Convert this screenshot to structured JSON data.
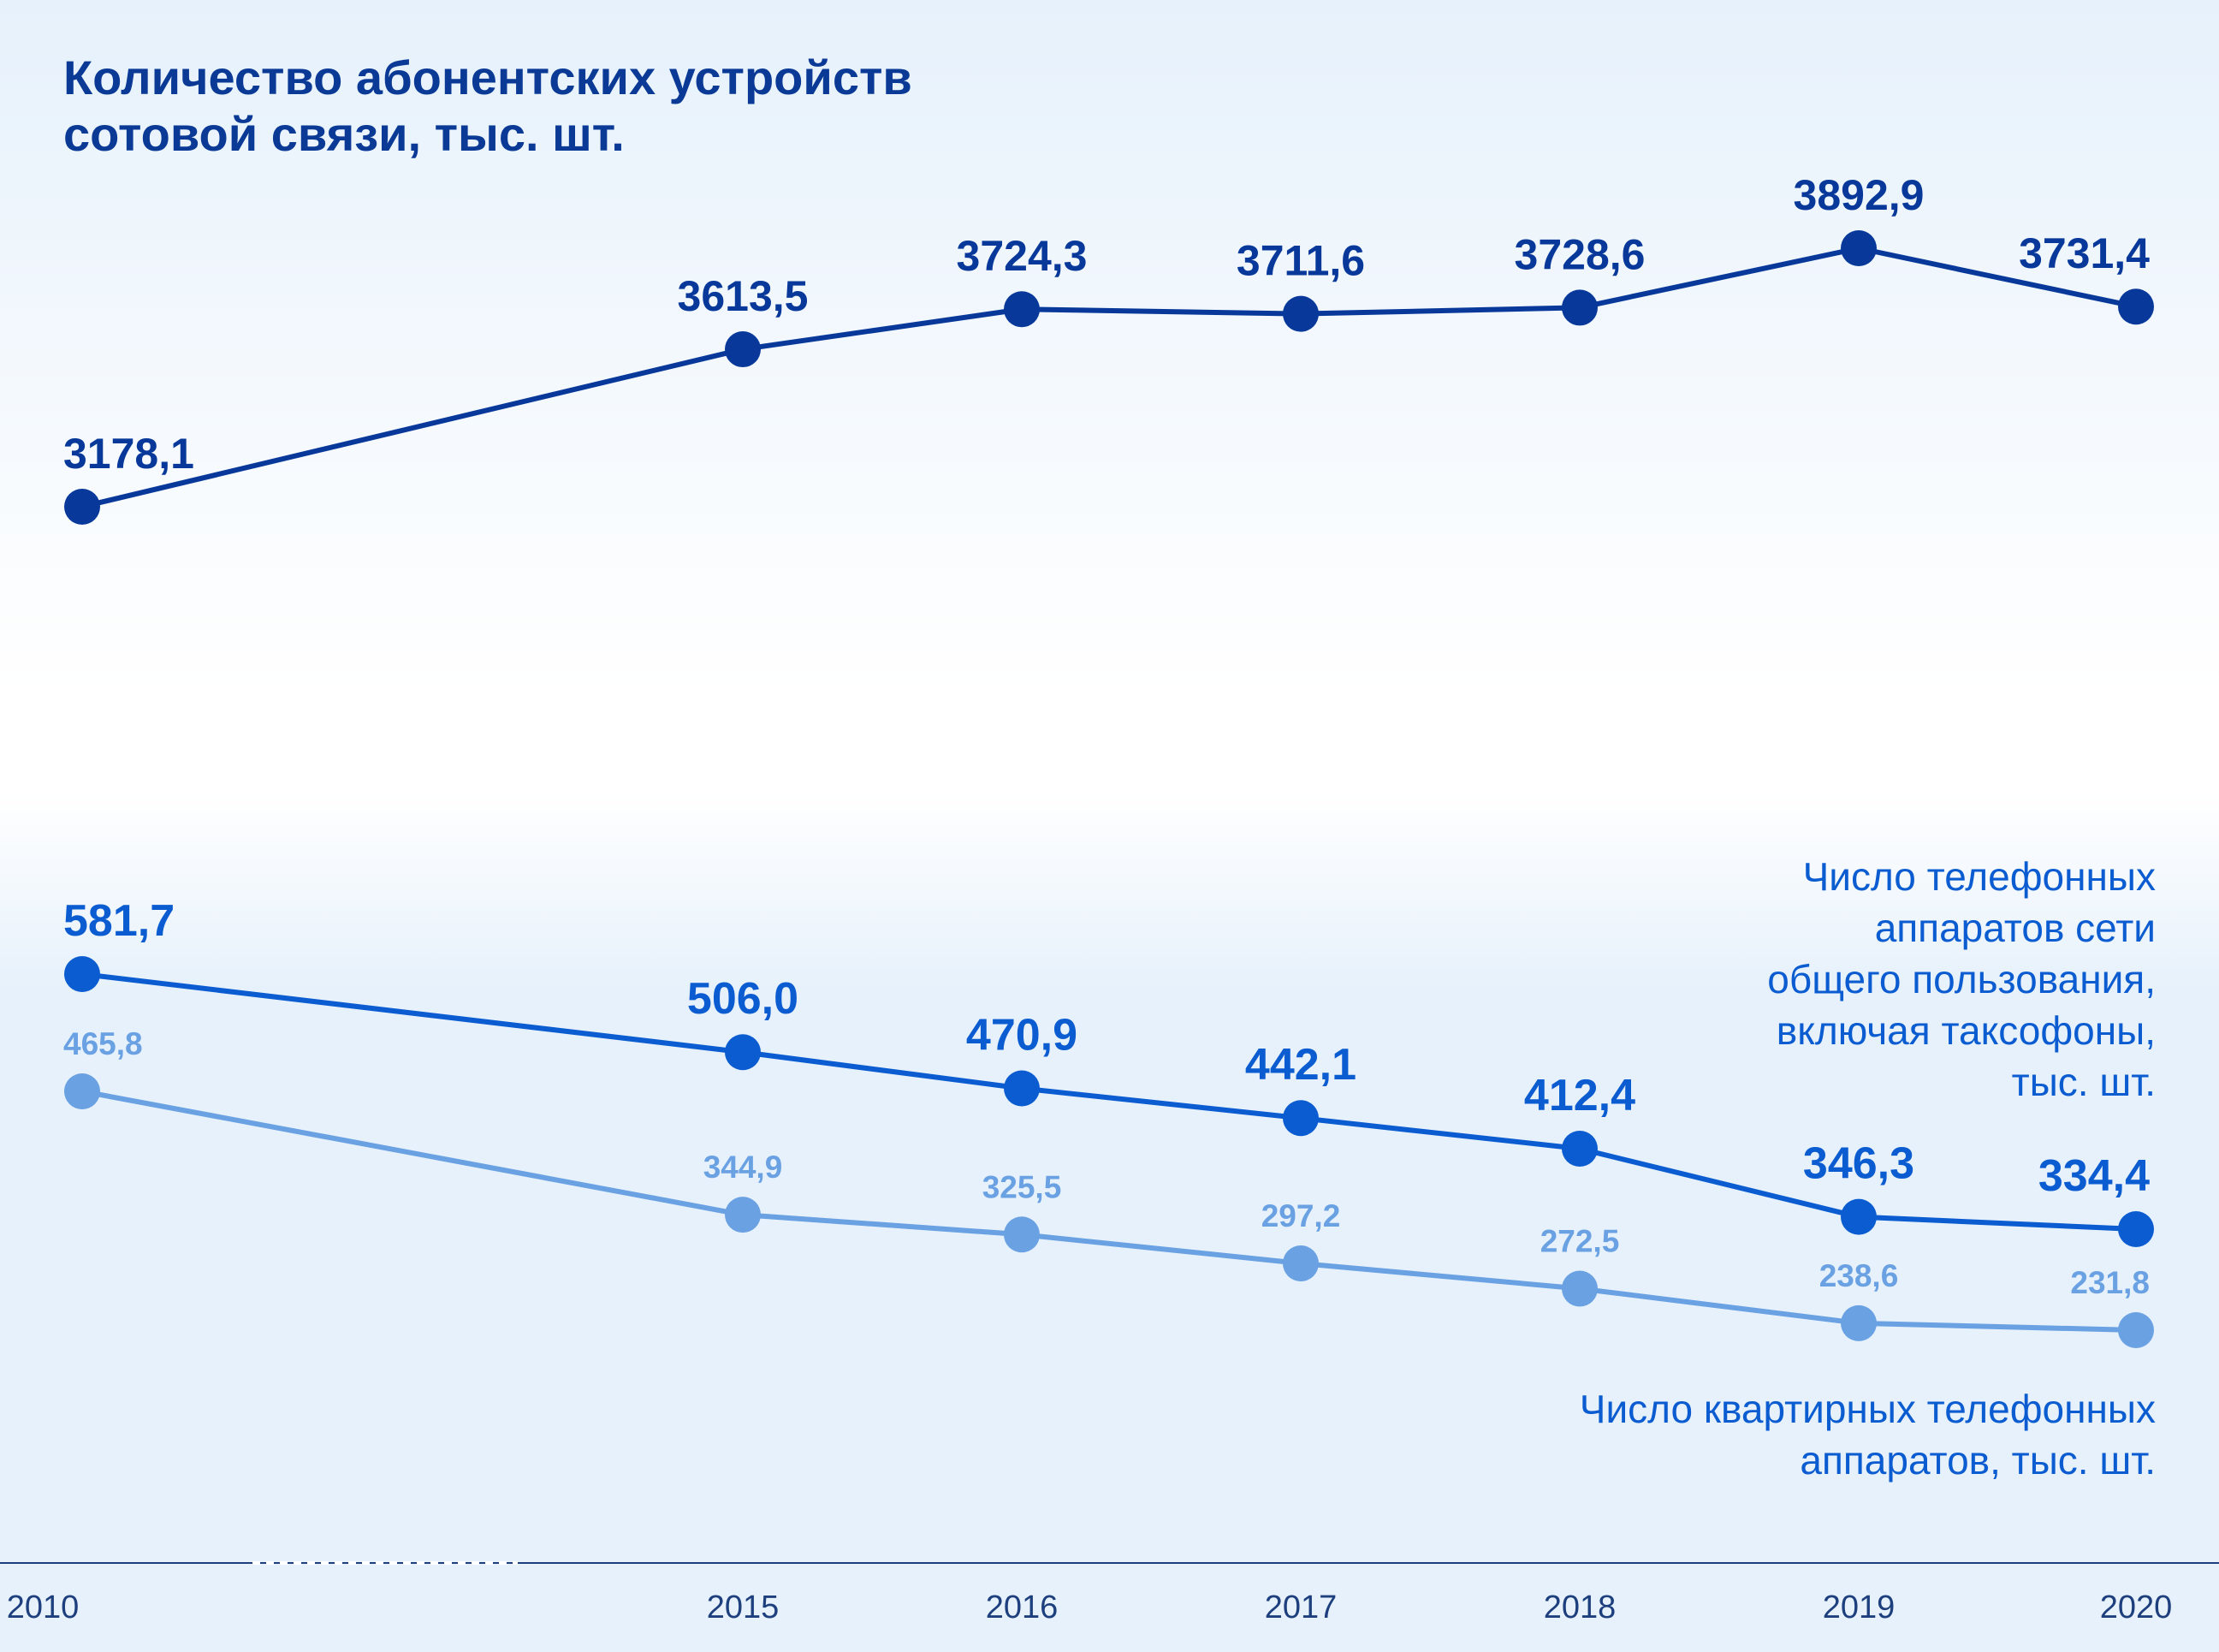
{
  "title_lines": [
    "Количество абонентских устройств",
    "сотовой связи, тыс. шт."
  ],
  "notes": {
    "public_lines": [
      "Число телефонных",
      "аппаратов сети",
      "общего пользования,",
      "включая таксофоны,",
      "тыс. шт."
    ],
    "home_lines": [
      "Число квартирных телефонных",
      "аппаратов, тыс. шт."
    ]
  },
  "colors": {
    "cellular": "#08399a",
    "public": "#0b5cd0",
    "home": "#6aa1e3",
    "axis": "#1d3f7d"
  },
  "chart_data": {
    "type": "line",
    "x": [
      "2010",
      "2015",
      "2016",
      "2017",
      "2018",
      "2019",
      "2020"
    ],
    "axis_break_between": [
      "2010",
      "2015"
    ],
    "grid": false,
    "series": [
      {
        "values": [
          3178.1,
          3613.5,
          3724.3,
          3711.6,
          3728.6,
          3892.9,
          3731.4
        ],
        "labels": [
          "3178,1",
          "3613,5",
          "3724,3",
          "3711,6",
          "3728,6",
          "3892,9",
          "3731,4"
        ]
      },
      {
        "values": [
          581.7,
          506.0,
          470.9,
          442.1,
          412.4,
          346.3,
          334.4
        ],
        "labels": [
          "581,7",
          "506,0",
          "470,9",
          "442,1",
          "412,4",
          "346,3",
          "334,4"
        ]
      },
      {
        "values": [
          465.8,
          344.9,
          325.5,
          297.2,
          272.5,
          238.6,
          231.8
        ],
        "labels": [
          "465,8",
          "344,9",
          "325,5",
          "297,2",
          "272,5",
          "238,6",
          "231,8"
        ]
      }
    ]
  }
}
